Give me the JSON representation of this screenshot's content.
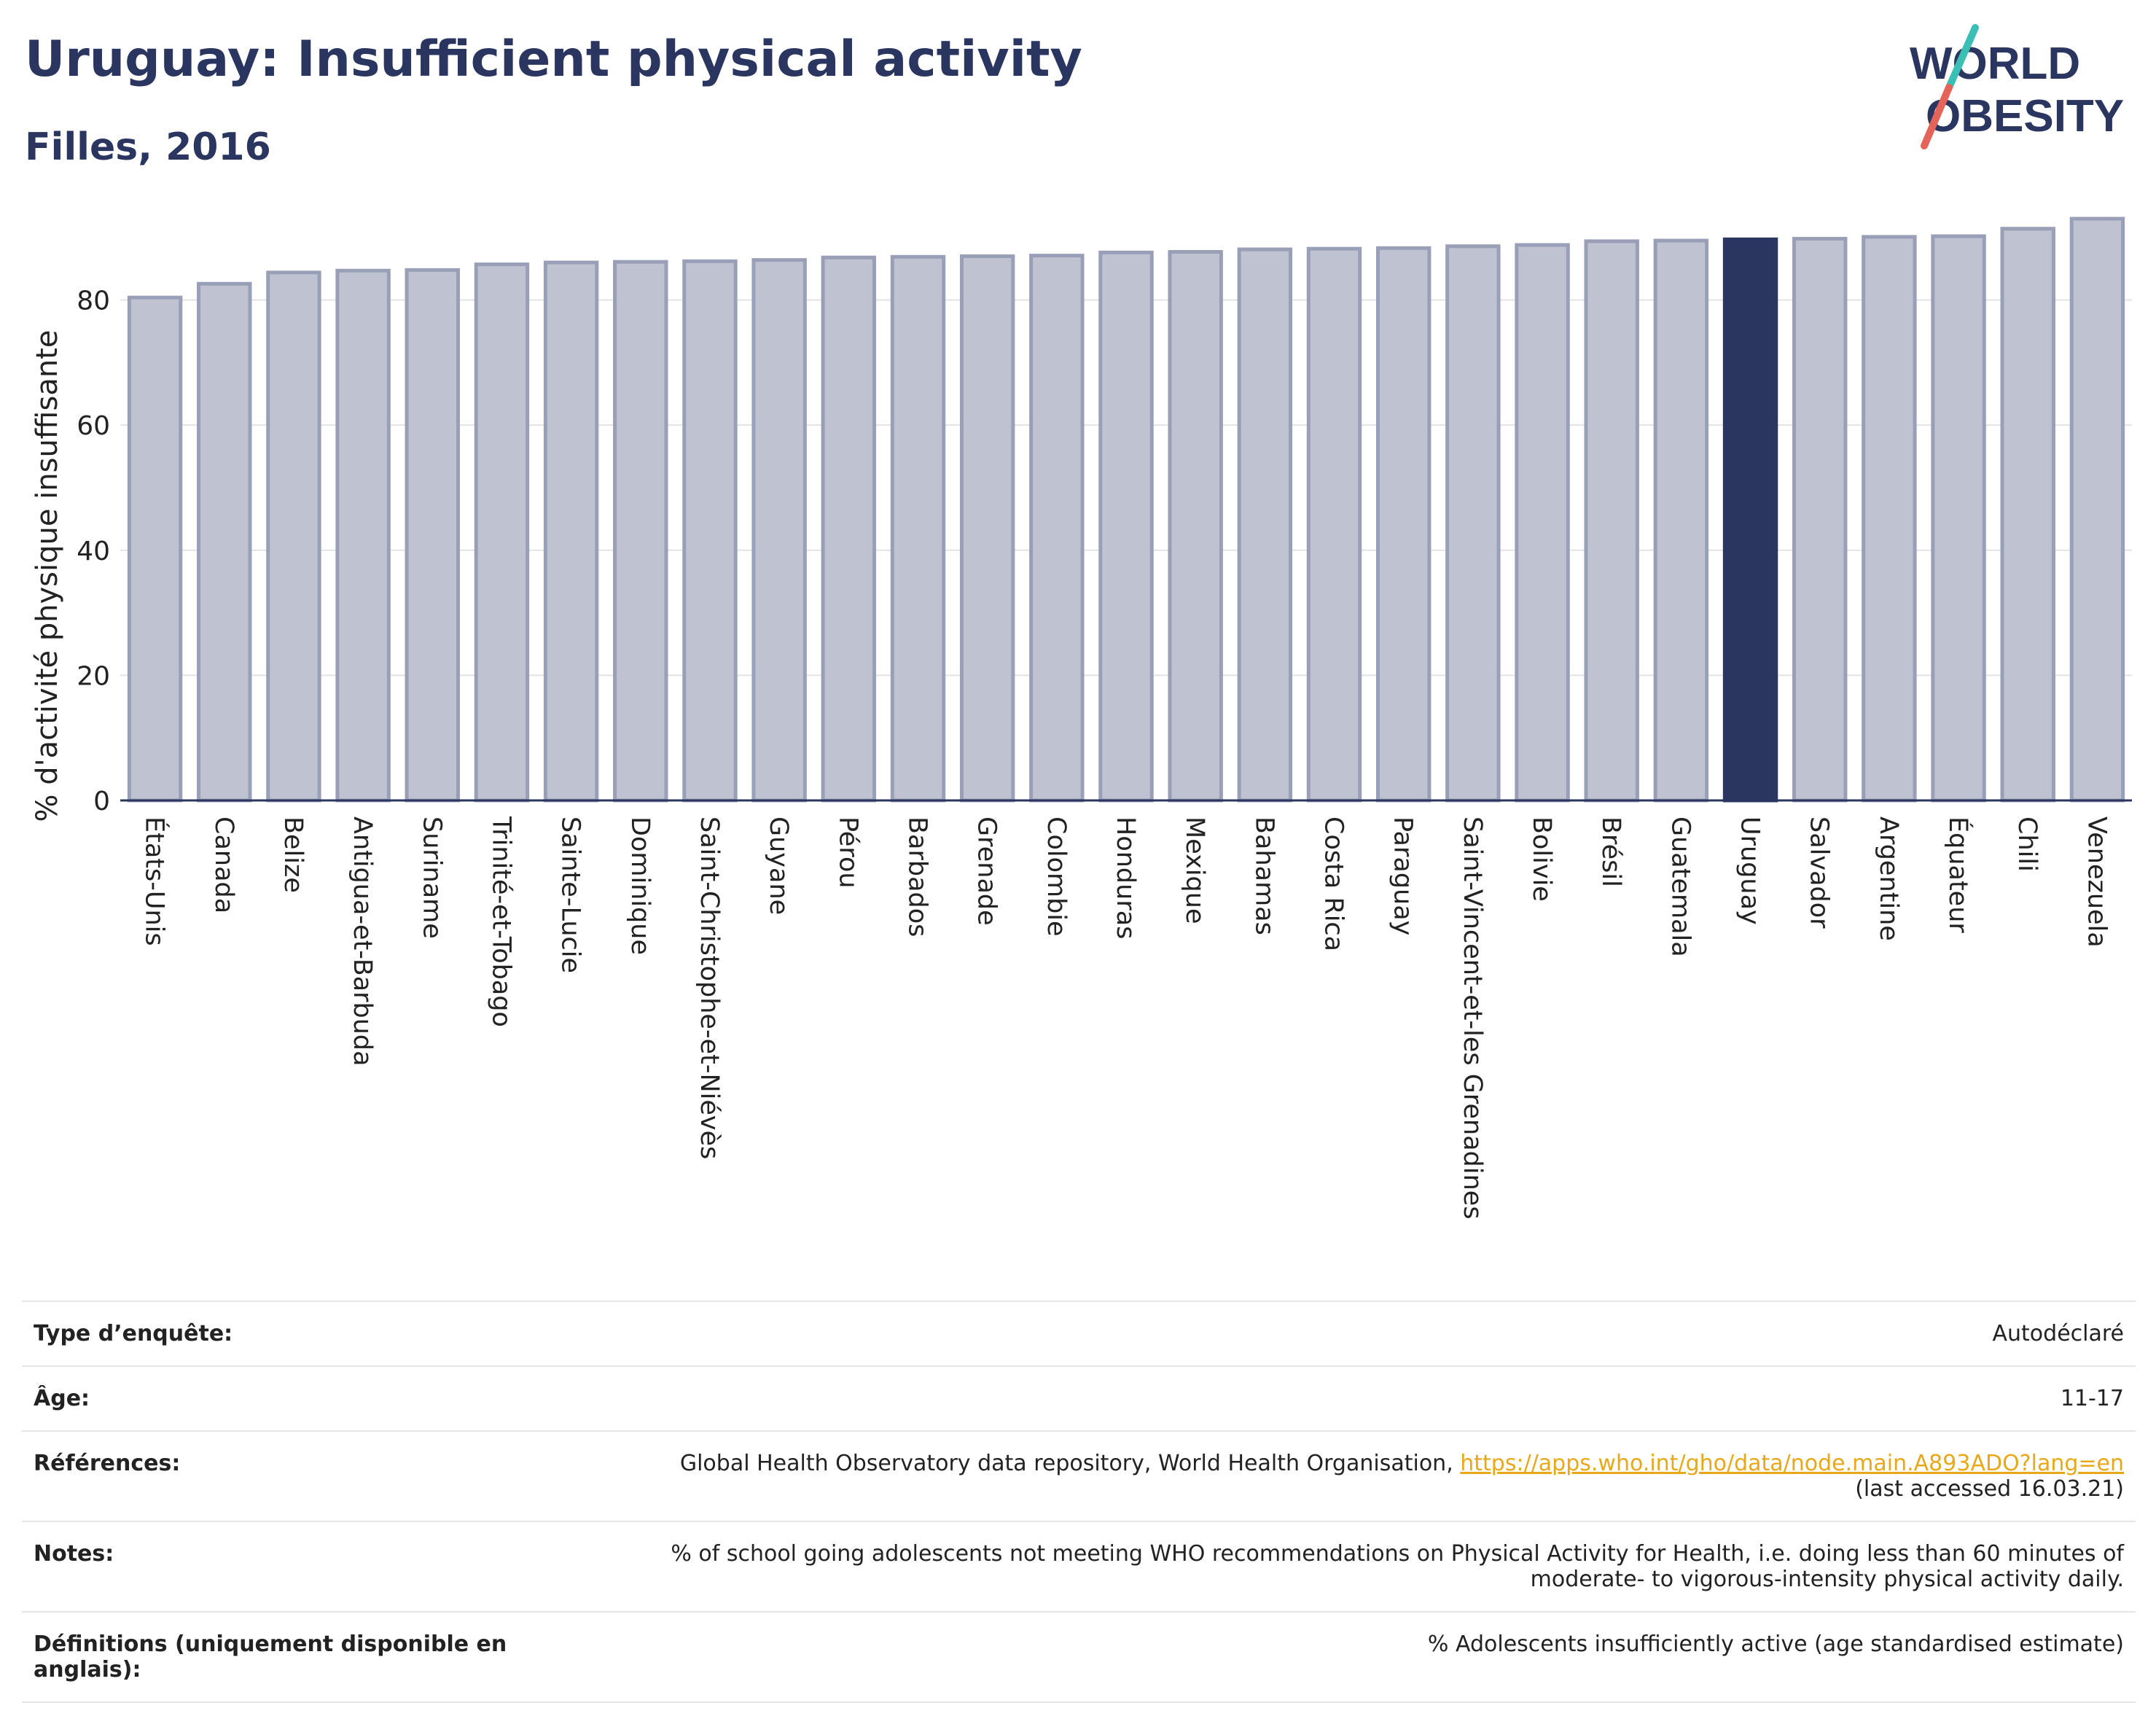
{
  "title": "Uruguay: Insufficient physical activity",
  "subtitle": "Filles, 2016",
  "logo": {
    "line1": "WORLD",
    "line2": "OBESITY"
  },
  "colors": {
    "bar": "#bfc2d0",
    "bar_edge": "#9a9fb8",
    "highlight": "#2a3560",
    "title": "#2a3560",
    "link": "#e8a81a"
  },
  "chart_data": {
    "type": "bar",
    "ylabel": "% d'activité physique insuffisante",
    "xlabel": "",
    "ylim": [
      0,
      93
    ],
    "yticks": [
      0,
      20,
      40,
      60,
      80
    ],
    "grid": true,
    "highlight": "Uruguay",
    "categories": [
      "États-Unis",
      "Canada",
      "Belize",
      "Antigua-et-Barbuda",
      "Suriname",
      "Trinité-et-Tobago",
      "Sainte-Lucie",
      "Dominique",
      "Saint-Christophe-et-Niévès",
      "Guyane",
      "Pérou",
      "Barbados",
      "Grenade",
      "Colombie",
      "Honduras",
      "Mexique",
      "Bahamas",
      "Costa Rica",
      "Paraguay",
      "Saint-Vincent-et-les Grenadines",
      "Bolivie",
      "Brésil",
      "Guatemala",
      "Uruguay",
      "Salvador",
      "Argentine",
      "Équateur",
      "Chili",
      "Venezuela"
    ],
    "values": [
      80.4,
      82.6,
      84.4,
      84.7,
      84.8,
      85.7,
      86.0,
      86.1,
      86.2,
      86.4,
      86.8,
      86.9,
      87.0,
      87.1,
      87.6,
      87.7,
      88.1,
      88.2,
      88.3,
      88.6,
      88.8,
      89.4,
      89.5,
      89.7,
      89.8,
      90.1,
      90.2,
      91.4,
      93.0
    ]
  },
  "info": {
    "survey_label": "Type d’enquête:",
    "survey_value": "Autodéclaré",
    "age_label": "Âge:",
    "age_value": "11-17",
    "ref_label": "Références:",
    "ref_text": "Global Health Observatory data repository, World Health Organisation, ",
    "ref_link": "https://apps.who.int/gho/data/node.main.A893ADO?lang=en",
    "ref_accessed": "(last accessed 16.03.21)",
    "notes_label": "Notes:",
    "notes_line1": "% of school going adolescents not meeting WHO recommendations on Physical Activity for Health, i.e. doing less than 60 minutes of",
    "notes_line2": "moderate- to vigorous-intensity physical activity daily.",
    "def_label": "Définitions (uniquement disponible en anglais):",
    "def_value": "% Adolescents insufficiently active (age standardised estimate)"
  }
}
